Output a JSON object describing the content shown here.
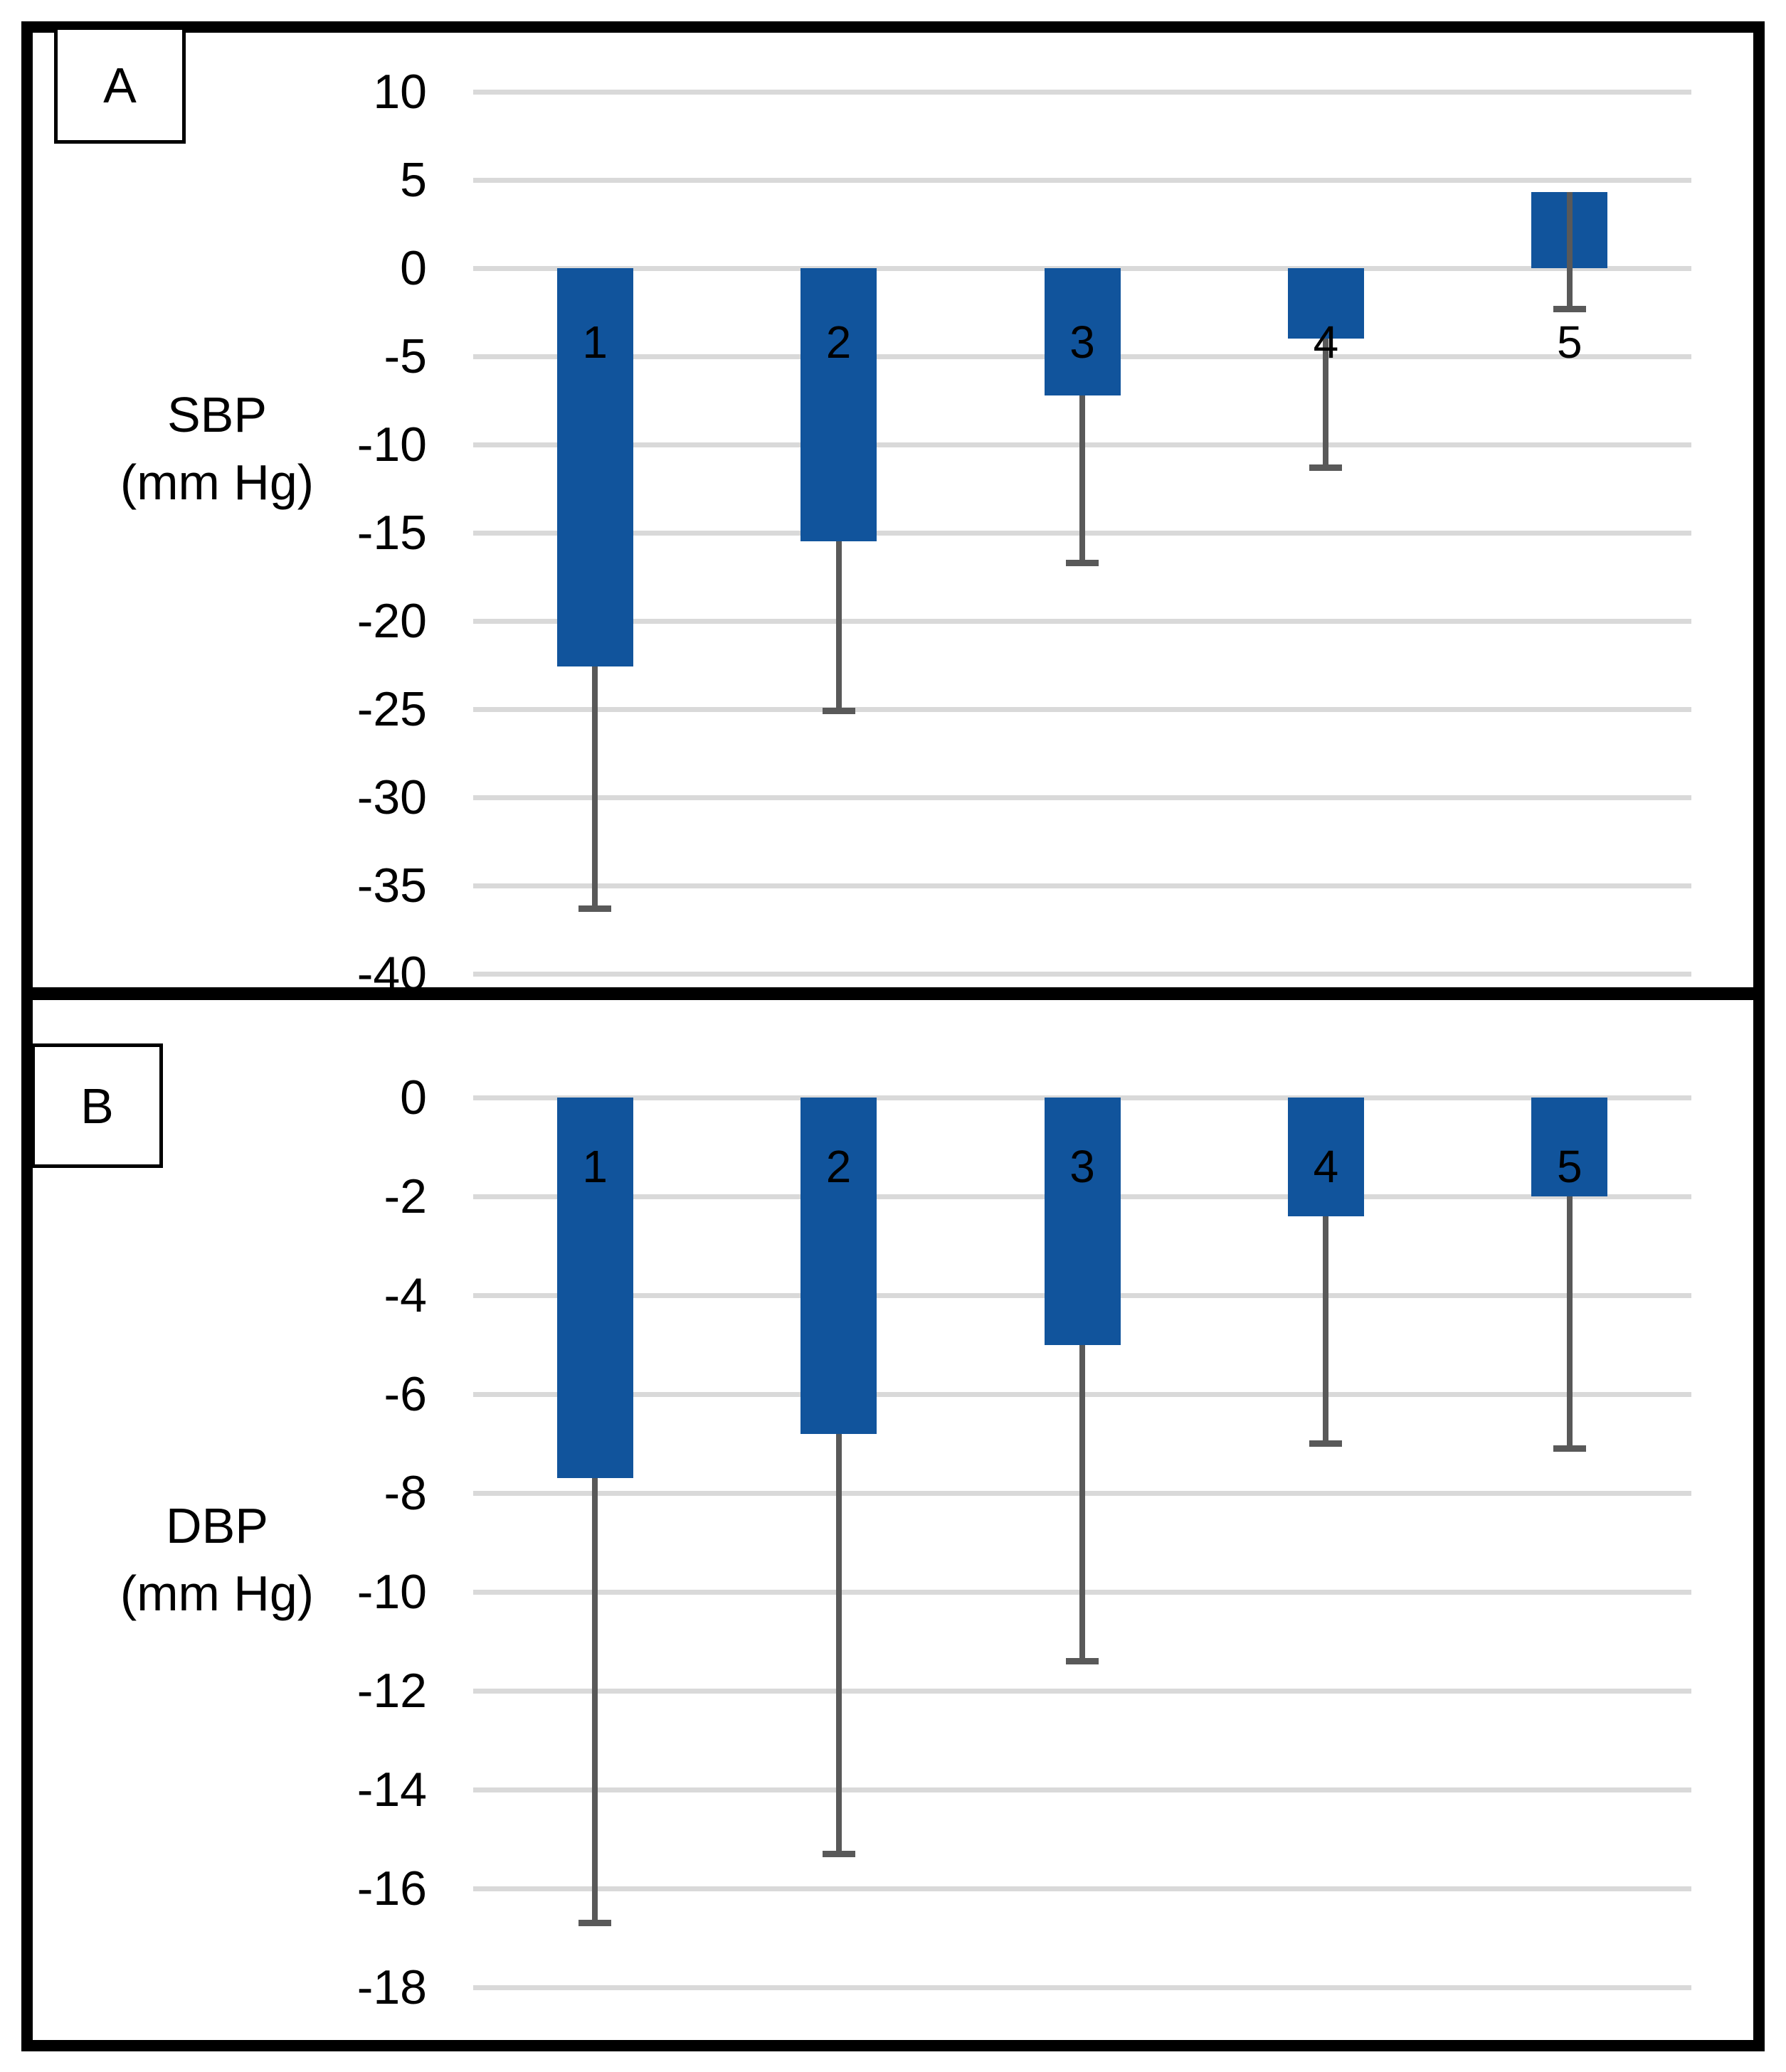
{
  "figure_description": "Two-panel bar chart of blood pressure change with downward error bars",
  "colors": {
    "bar": "#11549C",
    "error_bar": "#595959",
    "gridline": "#D9D9D9",
    "text": "#000000",
    "border": "#000000",
    "background": "#FFFFFF"
  },
  "chart_data": [
    {
      "panel_label": "A",
      "type": "bar",
      "ylabel": "SBP (mm Hg)",
      "ylabel_lines": [
        "SBP",
        "(mm Hg)"
      ],
      "categories": [
        "1",
        "2",
        "3",
        "4",
        "5"
      ],
      "values": [
        -22.6,
        -15.5,
        -7.2,
        -4.0,
        4.3
      ],
      "error_low": [
        -36.3,
        -25.1,
        -16.7,
        -11.3,
        -2.3
      ],
      "ylim": [
        -40,
        10
      ],
      "ytick_step": 5,
      "yticks": [
        "10",
        "5",
        "0",
        "-5",
        "-10",
        "-15",
        "-20",
        "-25",
        "-30",
        "-35",
        "-40"
      ],
      "grid": true,
      "legend": "none"
    },
    {
      "panel_label": "B",
      "type": "bar",
      "ylabel": "DBP (mm Hg)",
      "ylabel_lines": [
        "DBP",
        "(mm Hg)"
      ],
      "categories": [
        "1",
        "2",
        "3",
        "4",
        "5"
      ],
      "values": [
        -7.7,
        -6.8,
        -5.0,
        -2.4,
        -2.0
      ],
      "error_low": [
        -16.7,
        -15.3,
        -11.4,
        -7.0,
        -7.1
      ],
      "ylim": [
        -18,
        0
      ],
      "ytick_step": 2,
      "yticks": [
        "0",
        "-2",
        "-4",
        "-6",
        "-8",
        "-10",
        "-12",
        "-14",
        "-16",
        "-18"
      ],
      "grid": true,
      "legend": "none"
    }
  ]
}
